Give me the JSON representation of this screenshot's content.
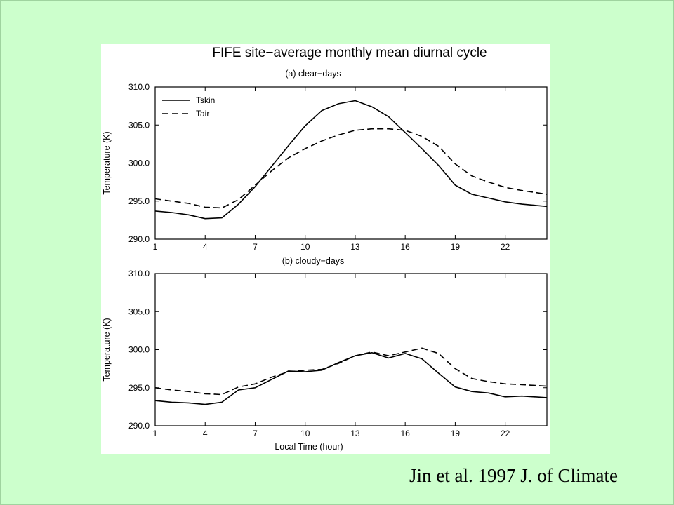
{
  "figure": {
    "title": "FIFE site−average monthly mean diurnal cycle",
    "citation": "Jin et al. 1997 J. of Climate"
  },
  "chart_data": [
    {
      "type": "line",
      "subtitle": "(a) clear−days",
      "xlabel": "",
      "ylabel": "Temperature (K)",
      "xlim": [
        1,
        24.5
      ],
      "ylim": [
        290.0,
        310.0
      ],
      "xticks": [
        1,
        4,
        7,
        10,
        13,
        16,
        19,
        22
      ],
      "yticks": [
        "290.0",
        "295.0",
        "300.0",
        "305.0",
        "310.0"
      ],
      "legend_position": "top-left",
      "x": [
        1,
        2,
        3,
        4,
        5,
        6,
        7,
        8,
        9,
        10,
        11,
        12,
        13,
        14,
        15,
        16,
        17,
        18,
        19,
        20,
        21,
        22,
        23,
        24.5
      ],
      "series": [
        {
          "name": "Tskin",
          "style": "solid",
          "values": [
            293.7,
            293.5,
            293.2,
            292.7,
            292.8,
            294.6,
            296.9,
            299.6,
            302.3,
            304.9,
            306.9,
            307.8,
            308.2,
            307.4,
            306.1,
            304.0,
            301.9,
            299.7,
            297.1,
            295.9,
            295.4,
            294.9,
            294.6,
            294.3
          ]
        },
        {
          "name": "Tair",
          "style": "dashed",
          "values": [
            295.3,
            295.0,
            294.7,
            294.2,
            294.1,
            295.2,
            297.1,
            299.0,
            300.7,
            301.9,
            302.9,
            303.7,
            304.3,
            304.5,
            304.5,
            304.3,
            303.5,
            302.2,
            299.9,
            298.3,
            297.5,
            296.8,
            296.4,
            295.9
          ]
        }
      ]
    },
    {
      "type": "line",
      "subtitle": "(b) cloudy−days",
      "xlabel": "Local Time (hour)",
      "ylabel": "Temperature (K)",
      "xlim": [
        1,
        24.5
      ],
      "ylim": [
        290.0,
        310.0
      ],
      "xticks": [
        1,
        4,
        7,
        10,
        13,
        16,
        19,
        22
      ],
      "yticks": [
        "290.0",
        "295.0",
        "300.0",
        "305.0",
        "310.0"
      ],
      "x": [
        1,
        2,
        3,
        4,
        5,
        6,
        7,
        8,
        9,
        10,
        11,
        12,
        13,
        14,
        15,
        16,
        17,
        18,
        19,
        20,
        21,
        22,
        23,
        24.5
      ],
      "series": [
        {
          "name": "Tskin",
          "style": "solid",
          "values": [
            293.3,
            293.1,
            293.0,
            292.8,
            293.1,
            294.7,
            295.0,
            296.1,
            297.2,
            297.1,
            297.3,
            298.3,
            299.2,
            299.6,
            298.9,
            299.5,
            298.8,
            296.9,
            295.1,
            294.5,
            294.3,
            293.8,
            293.9,
            293.7
          ]
        },
        {
          "name": "Tair",
          "style": "dashed",
          "values": [
            295.0,
            294.7,
            294.5,
            294.2,
            294.1,
            295.1,
            295.5,
            296.4,
            297.1,
            297.3,
            297.4,
            298.2,
            299.2,
            299.7,
            299.2,
            299.7,
            300.2,
            299.5,
            297.5,
            296.2,
            295.8,
            295.5,
            295.4,
            295.2
          ]
        }
      ]
    }
  ]
}
